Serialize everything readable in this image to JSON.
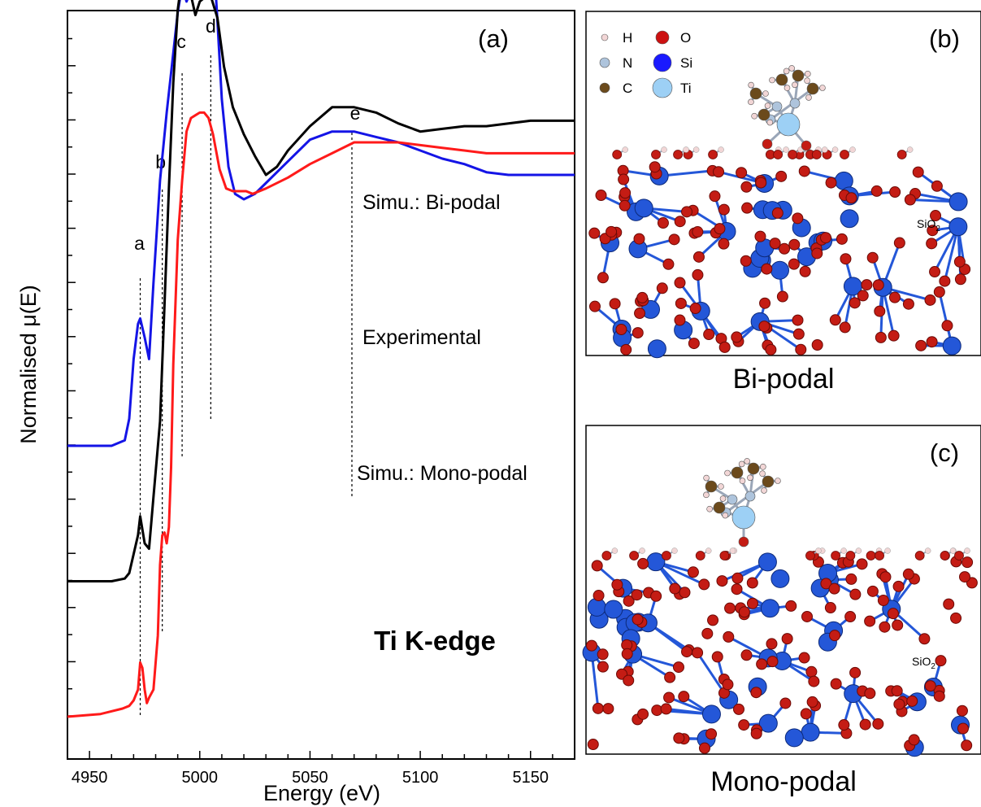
{
  "chart_data": {
    "type": "line",
    "panel_label": "(a)",
    "xlabel": "Energy (eV)",
    "ylabel": "Normalised μ(E)",
    "xlim": [
      4940,
      5170
    ],
    "xticks": [
      4950,
      5000,
      5050,
      5100,
      5150
    ],
    "x_tick_labels": [
      "4950",
      "5000",
      "5050",
      "5100",
      "5150"
    ],
    "y_tick_labels_shown": false,
    "grid": false,
    "annotation": "Ti K-edge",
    "features": [
      {
        "label": "a",
        "energy": 4973
      },
      {
        "label": "b",
        "energy": 4983
      },
      {
        "label": "c",
        "energy": 4992
      },
      {
        "label": "d",
        "energy": 5005
      },
      {
        "label": "e",
        "energy": 5069
      }
    ],
    "series": [
      {
        "label": "Simu.: Bi-podal",
        "color": "#1414e6",
        "x": [
          4940,
          4960,
          4966,
          4968,
          4970,
          4972,
          4973,
          4975,
          4977,
          4979,
          4982,
          4985,
          4988,
          4990,
          4992,
          4994,
          4996,
          4999,
          5002,
          5004,
          5006,
          5008,
          5010,
          5013,
          5016,
          5020,
          5025,
          5030,
          5040,
          5050,
          5060,
          5070,
          5080,
          5090,
          5100,
          5110,
          5120,
          5130,
          5140,
          5150,
          5160,
          5170
        ],
        "y": [
          0,
          0,
          0.02,
          0.1,
          0.32,
          0.45,
          0.47,
          0.4,
          0.32,
          0.6,
          0.98,
          1.23,
          1.45,
          1.6,
          1.7,
          1.64,
          1.68,
          1.88,
          2.0,
          1.98,
          1.84,
          1.57,
          1.28,
          1.03,
          0.93,
          0.91,
          0.93,
          0.97,
          1.05,
          1.13,
          1.16,
          1.16,
          1.14,
          1.12,
          1.09,
          1.06,
          1.04,
          1.01,
          1.0,
          1.0,
          1.0,
          1.0
        ]
      },
      {
        "label": "Experimental",
        "color": "#000000",
        "x": [
          4940,
          4950,
          4960,
          4966,
          4968,
          4970,
          4972,
          4973,
          4975,
          4977,
          4979,
          4982,
          4984,
          4986,
          4988,
          4990,
          4992,
          4995,
          4998,
          5000,
          5003,
          5005,
          5008,
          5011,
          5015,
          5020,
          5025,
          5030,
          5035,
          5040,
          5050,
          5060,
          5070,
          5080,
          5090,
          5100,
          5110,
          5120,
          5130,
          5140,
          5150,
          5160,
          5170
        ],
        "y": [
          -0.5,
          -0.5,
          -0.5,
          -0.49,
          -0.47,
          -0.4,
          -0.33,
          -0.26,
          -0.36,
          -0.38,
          -0.19,
          0.09,
          0.52,
          0.95,
          1.34,
          1.61,
          1.73,
          1.7,
          1.59,
          1.64,
          1.66,
          1.66,
          1.58,
          1.4,
          1.25,
          1.15,
          1.07,
          1.0,
          1.03,
          1.09,
          1.18,
          1.25,
          1.25,
          1.23,
          1.19,
          1.16,
          1.17,
          1.18,
          1.18,
          1.19,
          1.2,
          1.2,
          1.2
        ]
      },
      {
        "label": "Simu.: Mono-podal",
        "color": "#ff1a1a",
        "x": [
          4940,
          4955,
          4965,
          4968,
          4970,
          4972,
          4973,
          4974,
          4975,
          4976,
          4977,
          4979,
          4981,
          4982,
          4983,
          4984,
          4985,
          4986,
          4987,
          4988,
          4990,
          4992,
          4994,
          4996,
          4998,
          5000,
          5002,
          5004,
          5006,
          5009,
          5012,
          5015,
          5018,
          5021,
          5024,
          5030,
          5040,
          5050,
          5060,
          5070,
          5080,
          5090,
          5100,
          5110,
          5120,
          5130,
          5140,
          5150,
          5160,
          5170
        ],
        "y": [
          -1.0,
          -0.99,
          -0.97,
          -0.96,
          -0.94,
          -0.9,
          -0.8,
          -0.82,
          -0.9,
          -0.95,
          -0.93,
          -0.9,
          -0.7,
          -0.44,
          -0.33,
          -0.32,
          -0.36,
          -0.3,
          -0.08,
          0.3,
          0.76,
          0.98,
          1.16,
          1.21,
          1.22,
          1.23,
          1.23,
          1.21,
          1.15,
          1.02,
          0.95,
          0.94,
          0.94,
          0.94,
          0.93,
          0.95,
          0.99,
          1.04,
          1.08,
          1.12,
          1.12,
          1.12,
          1.11,
          1.1,
          1.09,
          1.08,
          1.08,
          1.08,
          1.08,
          1.08
        ]
      }
    ]
  },
  "panels": {
    "b": {
      "label": "(b)",
      "caption": "Bi-podal",
      "substrate": "SiO",
      "substrate_sub": "2",
      "legend": [
        {
          "symbol": "H",
          "color": "#f2d6d6"
        },
        {
          "symbol": "O",
          "color": "#cc1111"
        },
        {
          "symbol": "N",
          "color": "#aec4dc"
        },
        {
          "symbol": "Si",
          "color": "#1a1aff"
        },
        {
          "symbol": "C",
          "color": "#6b4a1c"
        },
        {
          "symbol": "Ti",
          "color": "#9dd0f5"
        }
      ]
    },
    "c": {
      "label": "(c)",
      "caption": "Mono-podal",
      "substrate": "SiO",
      "substrate_sub": "2"
    }
  }
}
